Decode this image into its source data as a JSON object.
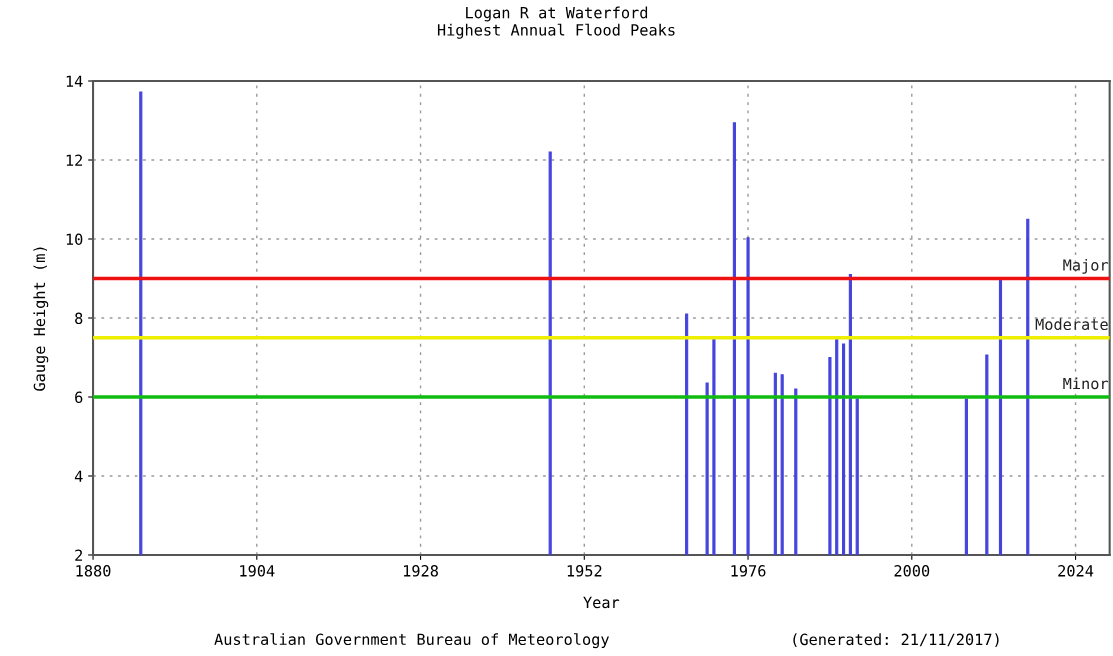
{
  "chart_data": {
    "type": "bar",
    "title": "Logan R at Waterford\nHighest Annual Flood Peaks",
    "xlabel": "Year",
    "ylabel": "Gauge Height (m)",
    "x": [
      1887,
      1947,
      1967,
      1970,
      1971,
      1974,
      1976,
      1980,
      1981,
      1983,
      1988,
      1989,
      1990,
      1991,
      1992,
      2008,
      2011,
      2013,
      2017
    ],
    "series": [
      {
        "color": "#4444dd",
        "values": [
          13.72,
          12.2,
          8.1,
          6.35,
          7.52,
          12.94,
          10.03,
          6.6,
          6.56,
          6.2,
          7.0,
          7.52,
          7.34,
          9.1,
          5.95,
          5.95,
          7.06,
          8.97,
          10.5
        ]
      }
    ],
    "xlim": [
      1880,
      2029
    ],
    "xticks": [
      1880,
      1904,
      1928,
      1952,
      1976,
      2000,
      2024
    ],
    "ylim": [
      2,
      14
    ],
    "yticks": [
      2,
      4,
      6,
      8,
      10,
      12,
      14
    ],
    "grid": true,
    "ref_lines": [
      {
        "axis": "y",
        "value": 9,
        "label": "Major",
        "color": "#ee1111"
      },
      {
        "axis": "y",
        "value": 7.5,
        "label": "Moderate",
        "color": "#eeee00"
      },
      {
        "axis": "y",
        "value": 6,
        "label": "Minor",
        "color": "#11bb11"
      }
    ],
    "annotations": [
      "Australian Government Bureau of Meteorology",
      "(Generated: 21/11/2017)"
    ]
  }
}
